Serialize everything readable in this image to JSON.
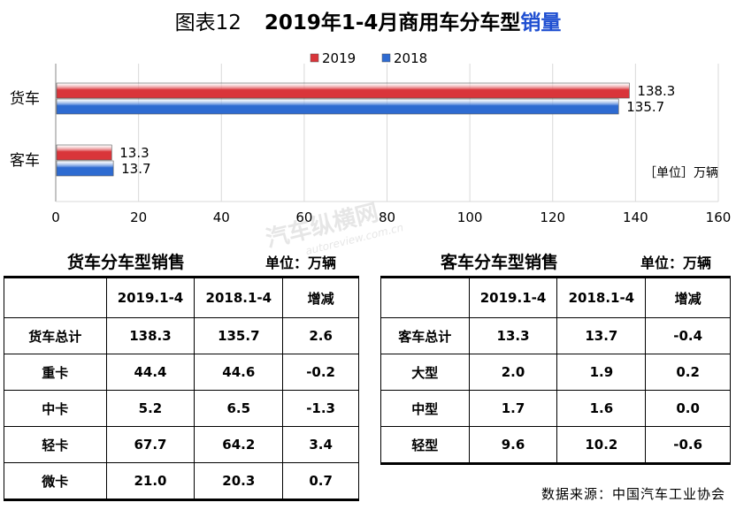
{
  "title": {
    "prefix": "图表12",
    "main": "2019年1-4月商用车分车型",
    "highlight": "销量"
  },
  "chart_data": {
    "type": "bar",
    "orientation": "horizontal",
    "categories": [
      "货车",
      "客车"
    ],
    "series": [
      {
        "name": "2019",
        "values": [
          138.3,
          13.3
        ],
        "color": "#d9353a"
      },
      {
        "name": "2018",
        "values": [
          135.7,
          13.7
        ],
        "color": "#2e6bd1"
      }
    ],
    "xlim": [
      0,
      160
    ],
    "xticks": [
      "0",
      "20",
      "40",
      "60",
      "80",
      "100",
      "120",
      "140",
      "160"
    ],
    "value_labels": [
      [
        "138.3",
        "13.3"
      ],
      [
        "135.7",
        "13.7"
      ]
    ],
    "unit_label": "［单位］万辆",
    "legend_position": "top-center",
    "grid": "vertical"
  },
  "truck_table": {
    "title": "货车分车型销售",
    "unit": "单位：万辆",
    "headers": [
      "",
      "2019.1-4",
      "2018.1-4",
      "增减"
    ],
    "rows": [
      [
        "货车总计",
        "138.3",
        "135.7",
        "2.6"
      ],
      [
        "重卡",
        "44.4",
        "44.6",
        "-0.2"
      ],
      [
        "中卡",
        "5.2",
        "6.5",
        "-1.3"
      ],
      [
        "轻卡",
        "67.7",
        "64.2",
        "3.4"
      ],
      [
        "微卡",
        "21.0",
        "20.3",
        "0.7"
      ]
    ]
  },
  "bus_table": {
    "title": "客车分车型销售",
    "unit": "单位：万辆",
    "headers": [
      "",
      "2019.1-4",
      "2018.1-4",
      "增减"
    ],
    "rows": [
      [
        "客车总计",
        "13.3",
        "13.7",
        "-0.4"
      ],
      [
        "大型",
        "2.0",
        "1.9",
        "0.2"
      ],
      [
        "中型",
        "1.7",
        "1.6",
        "0.0"
      ],
      [
        "轻型",
        "9.6",
        "10.2",
        "-0.6"
      ]
    ]
  },
  "watermark": {
    "text": "汽车纵横网",
    "url": "autoreview.com.cn"
  },
  "source": "数据来源：中国汽车工业协会"
}
